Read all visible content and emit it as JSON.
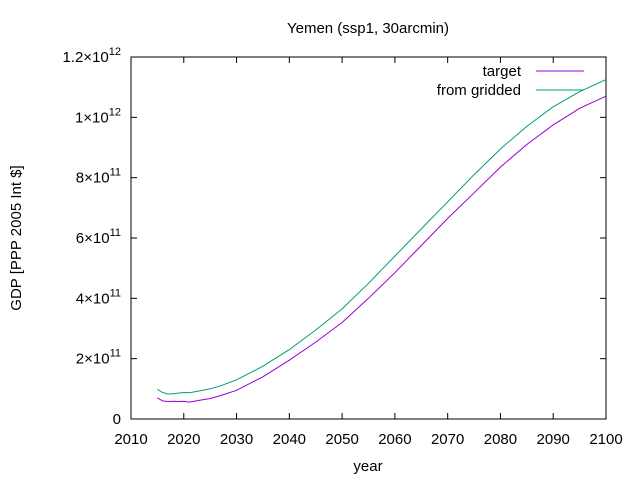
{
  "chart_data": {
    "type": "line",
    "title": "Yemen (ssp1, 30arcmin)",
    "xlabel": "year",
    "ylabel": "GDP [PPP 2005 Int $]",
    "xlim": [
      2010,
      2100
    ],
    "ylim": [
      0,
      1200000000000.0
    ],
    "x_ticks": [
      2010,
      2020,
      2030,
      2040,
      2050,
      2060,
      2070,
      2080,
      2090,
      2100
    ],
    "y_ticks": [
      {
        "value": 0,
        "mantissa": "0",
        "exponent": ""
      },
      {
        "value": 200000000000.0,
        "mantissa": "2×10",
        "exponent": "11"
      },
      {
        "value": 400000000000.0,
        "mantissa": "4×10",
        "exponent": "11"
      },
      {
        "value": 600000000000.0,
        "mantissa": "6×10",
        "exponent": "11"
      },
      {
        "value": 800000000000.0,
        "mantissa": "8×10",
        "exponent": "11"
      },
      {
        "value": 1000000000000.0,
        "mantissa": "1×10",
        "exponent": "12"
      },
      {
        "value": 1200000000000.0,
        "mantissa": "1.2×10",
        "exponent": "12"
      }
    ],
    "grid": false,
    "legend_position": "top-right",
    "x": [
      2015,
      2016,
      2017,
      2018,
      2019,
      2020,
      2021,
      2022,
      2023,
      2025,
      2027,
      2030,
      2035,
      2040,
      2045,
      2050,
      2055,
      2060,
      2065,
      2070,
      2075,
      2080,
      2085,
      2090,
      2095,
      2100
    ],
    "series": [
      {
        "name": "target",
        "color": "#9400d3",
        "values": [
          70000000000.0,
          60000000000.0,
          58000000000.0,
          59000000000.0,
          58000000000.0,
          59000000000.0,
          56000000000.0,
          59000000000.0,
          62000000000.0,
          68000000000.0,
          78000000000.0,
          95000000000.0,
          140000000000.0,
          195000000000.0,
          255000000000.0,
          320000000000.0,
          400000000000.0,
          485000000000.0,
          575000000000.0,
          665000000000.0,
          750000000000.0,
          835000000000.0,
          910000000000.0,
          975000000000.0,
          1030000000000.0,
          1070000000000.0
        ]
      },
      {
        "name": "from gridded",
        "color": "#009e73",
        "values": [
          98000000000.0,
          88000000000.0,
          83000000000.0,
          84000000000.0,
          86000000000.0,
          88000000000.0,
          87000000000.0,
          90000000000.0,
          93000000000.0,
          100000000000.0,
          110000000000.0,
          130000000000.0,
          175000000000.0,
          230000000000.0,
          295000000000.0,
          365000000000.0,
          450000000000.0,
          540000000000.0,
          630000000000.0,
          720000000000.0,
          810000000000.0,
          895000000000.0,
          970000000000.0,
          1035000000000.0,
          1085000000000.0,
          1125000000000.0
        ]
      }
    ]
  }
}
